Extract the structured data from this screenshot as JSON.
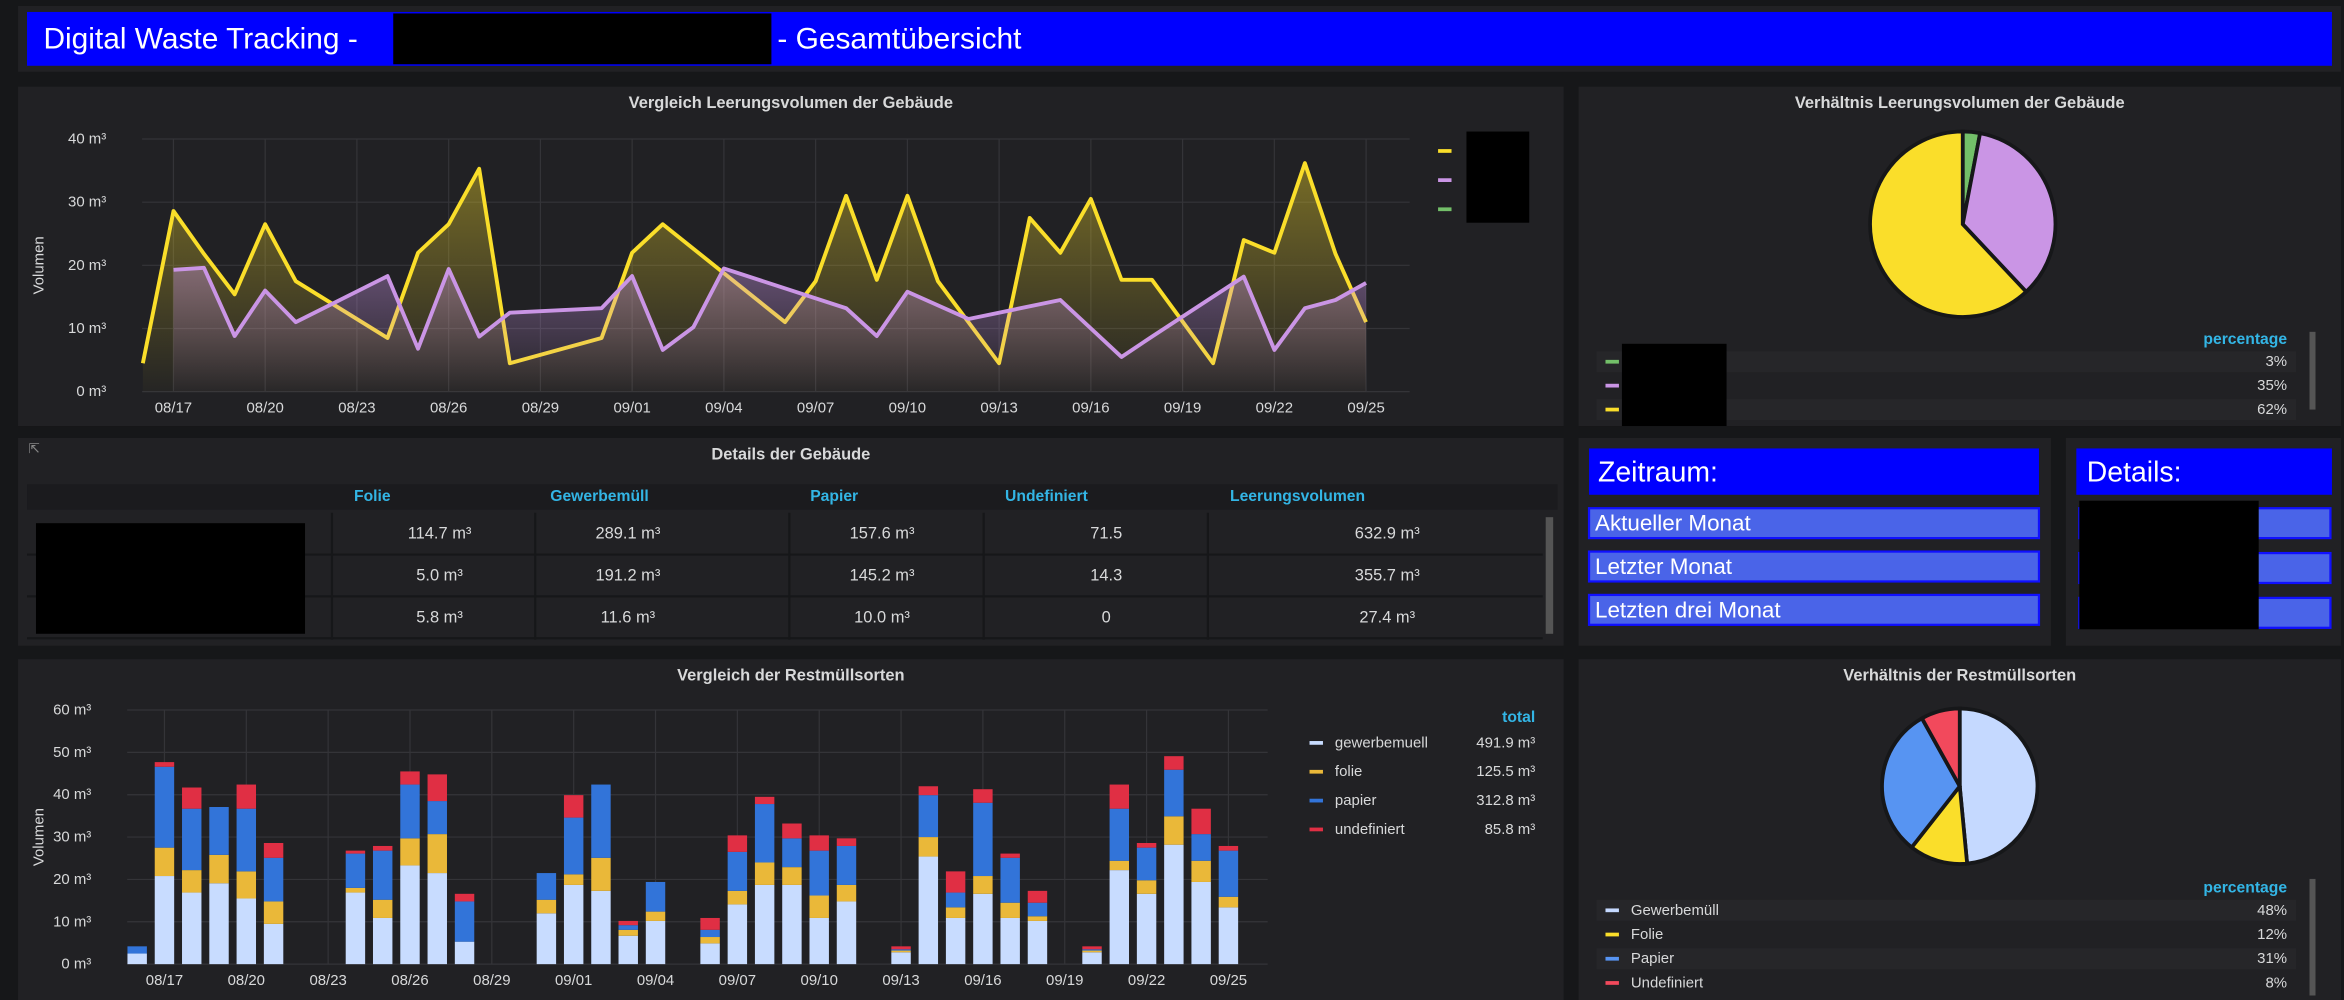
{
  "header": {
    "title_start": "Digital Waste Tracking -",
    "title_end": "- Gesamtübersicht"
  },
  "chart_data": [
    {
      "type": "line",
      "title": "Vergleich Leerungsvolumen der Gebäude",
      "y_label": "Volumen",
      "xlim": [
        "08/16",
        "09/26"
      ],
      "xticks": [
        "08/17",
        "08/20",
        "08/23",
        "08/26",
        "08/29",
        "09/01",
        "09/04",
        "09/07",
        "09/10",
        "09/13",
        "09/16",
        "09/19",
        "09/22",
        "09/25"
      ],
      "ylim": [
        0,
        40
      ],
      "yticks": [
        {
          "value": 0,
          "label": "0 m³"
        },
        {
          "value": 10,
          "label": "10 m³"
        },
        {
          "value": 20,
          "label": "20 m³"
        },
        {
          "value": 30,
          "label": "30 m³"
        },
        {
          "value": 40,
          "label": "40 m³"
        }
      ],
      "grid": true,
      "series": [
        {
          "color": "#fade2a",
          "x": [
            "08/16",
            "08/17",
            "08/18",
            "08/19",
            "08/20",
            "08/21",
            "08/24",
            "08/25",
            "08/26",
            "08/27",
            "08/28",
            "08/31",
            "09/01",
            "09/02",
            "09/06",
            "09/07",
            "09/08",
            "09/09",
            "09/10",
            "09/11",
            "09/13",
            "09/14",
            "09/15",
            "09/16",
            "09/17",
            "09/18",
            "09/20",
            "09/21",
            "09/22",
            "09/23",
            "09/24",
            "09/25"
          ],
          "values": [
            4.5,
            28.6,
            21.8,
            15.4,
            26.5,
            17.5,
            8.5,
            22,
            26.5,
            35.3,
            4.5,
            8.5,
            22,
            26.5,
            11,
            17.5,
            31,
            17.7,
            31,
            17.5,
            4.5,
            27.5,
            22,
            30.5,
            17.7,
            17.7,
            4.5,
            24,
            22,
            36.2,
            21.8,
            11
          ]
        },
        {
          "color": "#ca95e5",
          "x": [
            "08/17",
            "08/18",
            "08/19",
            "08/20",
            "08/21",
            "08/24",
            "08/25",
            "08/26",
            "08/27",
            "08/28",
            "08/31",
            "09/01",
            "09/02",
            "09/03",
            "09/04",
            "09/08",
            "09/09",
            "09/10",
            "09/12",
            "09/15",
            "09/17",
            "09/18",
            "09/21",
            "09/22",
            "09/23",
            "09/24",
            "09/25"
          ],
          "values": [
            19.3,
            19.6,
            8.8,
            16,
            11,
            18.3,
            6.8,
            19.4,
            8.7,
            12.5,
            13.2,
            18.3,
            6.6,
            10.2,
            19.5,
            13.2,
            8.8,
            15.8,
            11.5,
            14.5,
            5.5,
            8.7,
            18.2,
            6.6,
            13.2,
            14.5,
            17.2
          ]
        },
        {
          "color": "#73bf69",
          "x": [],
          "values": []
        }
      ]
    },
    {
      "type": "pie",
      "title": "Verhältnis Leerungsvolumen der Gebäude",
      "legend_header": "percentage",
      "values": [
        3,
        35,
        62
      ],
      "value_labels": [
        "3%",
        "35%",
        "62%"
      ],
      "colors": [
        "#73bf69",
        "#ca95e5",
        "#fade2a"
      ]
    },
    {
      "type": "stacked-bar",
      "title": "Vergleich der Restmüllsorten",
      "y_label": "Volumen",
      "legend_header": "total",
      "xlim": [
        "08/16",
        "09/26"
      ],
      "xticks": [
        "08/17",
        "08/20",
        "08/23",
        "08/26",
        "08/29",
        "09/01",
        "09/04",
        "09/07",
        "09/10",
        "09/13",
        "09/16",
        "09/19",
        "09/22",
        "09/25"
      ],
      "ylim": [
        0,
        60
      ],
      "yticks": [
        {
          "value": 0,
          "label": "0 m³"
        },
        {
          "value": 10,
          "label": "10 m³"
        },
        {
          "value": 20,
          "label": "20 m³"
        },
        {
          "value": 30,
          "label": "30 m³"
        },
        {
          "value": 40,
          "label": "40 m³"
        },
        {
          "value": 50,
          "label": "50 m³"
        },
        {
          "value": 60,
          "label": "60 m³"
        }
      ],
      "grid": true,
      "x": [
        "08/16",
        "08/17",
        "08/18",
        "08/19",
        "08/20",
        "08/21",
        "08/24",
        "08/25",
        "08/26",
        "08/27",
        "08/28",
        "08/31",
        "09/01",
        "09/02",
        "09/03",
        "09/04",
        "09/06",
        "09/07",
        "09/08",
        "09/09",
        "09/10",
        "09/11",
        "09/13",
        "09/14",
        "09/15",
        "09/16",
        "09/17",
        "09/18",
        "09/20",
        "09/21",
        "09/22",
        "09/23",
        "09/24",
        "09/25"
      ],
      "series": [
        {
          "name": "gewerbemuell",
          "color": "#c8dcff",
          "total_label": "491.9 m³",
          "values": [
            2.5,
            20.8,
            16.9,
            19.1,
            15.5,
            9.5,
            16.9,
            10.9,
            23.3,
            21.5,
            5.3,
            12.0,
            18.7,
            17.3,
            6.7,
            10.2,
            4.9,
            14.1,
            18.7,
            18.7,
            10.9,
            14.8,
            2.8,
            25.4,
            10.9,
            16.6,
            10.9,
            10.2,
            2.8,
            22.2,
            16.6,
            28.2,
            19.4,
            13.4
          ]
        },
        {
          "name": "folie",
          "color": "#eab839",
          "total_label": "125.5 m³",
          "values": [
            0,
            6.7,
            5.3,
            6.7,
            6.4,
            5.3,
            1.1,
            4.3,
            6.4,
            9.2,
            0,
            3.2,
            2.5,
            7.8,
            1.4,
            2.2,
            1.5,
            3.2,
            5.3,
            4.2,
            5.3,
            3.9,
            0.4,
            4.6,
            2.5,
            4.2,
            3.6,
            1.1,
            0.4,
            2.2,
            3.2,
            6.7,
            5.0,
            2.5
          ]
        },
        {
          "name": "papier",
          "color": "#3274d9",
          "total_label": "312.8 m³",
          "values": [
            1.7,
            19.1,
            14.5,
            11.3,
            14.8,
            10.3,
            8.1,
            11.6,
            12.7,
            7.8,
            9.5,
            6.3,
            13.4,
            17.3,
            1.1,
            7.0,
            1.7,
            9.2,
            13.8,
            6.8,
            10.6,
            9.2,
            0.3,
            9.9,
            3.5,
            17.3,
            10.6,
            3.2,
            0.3,
            12.3,
            7.7,
            11.0,
            6.3,
            10.9
          ]
        },
        {
          "name": "undefiniert",
          "color": "#e02f44",
          "total_label": "85.8 m³",
          "values": [
            0,
            1.1,
            5.0,
            0,
            5.7,
            3.5,
            0.7,
            1.1,
            3.1,
            6.3,
            1.8,
            0,
            5.3,
            0,
            1.0,
            0,
            2.8,
            3.9,
            1.7,
            3.5,
            3.6,
            1.8,
            0.7,
            2.1,
            5.0,
            3.2,
            1.0,
            2.8,
            0.7,
            5.7,
            1.1,
            3.2,
            6.0,
            1.1
          ]
        }
      ]
    },
    {
      "type": "pie",
      "title": "Verhältnis der Restmüllsorten",
      "legend_header": "percentage",
      "categories": [
        "Gewerbemüll",
        "Folie",
        "Papier",
        "Undefiniert"
      ],
      "values": [
        48,
        12,
        31,
        8
      ],
      "value_labels": [
        "48%",
        "12%",
        "31%",
        "8%"
      ],
      "colors": [
        "#c5d9ff",
        "#fade2a",
        "#5794f2",
        "#f2495c"
      ]
    }
  ],
  "table": {
    "title": "Details der Gebäude",
    "headers": [
      "Folie",
      "Gewerbemüll",
      "Papier",
      "Undefiniert",
      "Leerungsvolumen"
    ],
    "rows": [
      [
        "114.7 m³",
        "289.1 m³",
        "157.6 m³",
        "71.5",
        "632.9 m³"
      ],
      [
        "5.0 m³",
        "191.2 m³",
        "145.2 m³",
        "14.3",
        "355.7 m³"
      ],
      [
        "5.8 m³",
        "11.6 m³",
        "10.0 m³",
        "0",
        "27.4 m³"
      ]
    ]
  },
  "period": {
    "title": "Zeitraum:",
    "options": [
      "Aktueller Monat",
      "Letzter Monat",
      "Letzten drei Monat"
    ]
  },
  "details": {
    "title": "Details:"
  }
}
